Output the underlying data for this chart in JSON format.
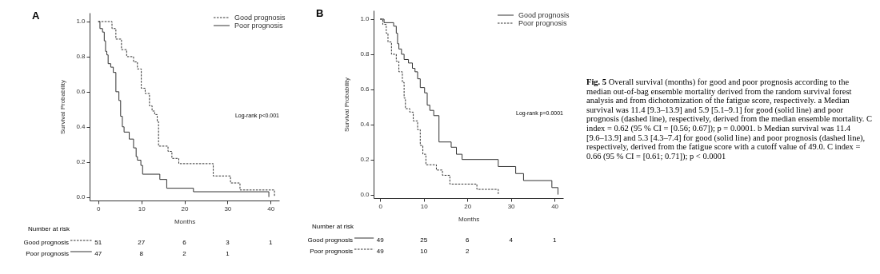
{
  "chart_data": [
    {
      "type": "step",
      "title": "A",
      "xlabel": "Months",
      "ylabel": "Survival Probability",
      "xlim": [
        -2,
        42
      ],
      "ylim": [
        -0.02,
        1.05
      ],
      "xticks": [
        0,
        10,
        20,
        30,
        40
      ],
      "yticks": [
        {
          "value": 0,
          "label": "0.0"
        },
        {
          "value": 0.2,
          "label": "0.2"
        },
        {
          "value": 0.4,
          "label": "0.4"
        },
        {
          "value": 0.6,
          "label": "0.6"
        },
        {
          "value": 0.8,
          "label": "0.8"
        },
        {
          "value": 1,
          "label": "1.0"
        }
      ],
      "legend": "top right",
      "grid": false,
      "series": [
        {
          "name": "Good prognosis",
          "color": "#333333",
          "line_style": "dashed",
          "x": [
            0,
            3.2,
            4.1,
            5.4,
            6.6,
            8.2,
            9.1,
            10.0,
            10.9,
            11.9,
            12.5,
            13.1,
            13.7,
            14.0,
            16.2,
            17.1,
            18.7,
            26.7,
            30.7,
            32.9,
            40.9
          ],
          "values": [
            1.0,
            0.96,
            0.9,
            0.84,
            0.8,
            0.77,
            0.73,
            0.62,
            0.59,
            0.52,
            0.49,
            0.47,
            0.43,
            0.29,
            0.26,
            0.22,
            0.19,
            0.12,
            0.08,
            0.04,
            0.0
          ]
        },
        {
          "name": "Poor prognosis",
          "color": "#333333",
          "line_style": "solid",
          "x": [
            0,
            0.4,
            1.0,
            1.4,
            1.7,
            2.0,
            2.3,
            2.9,
            3.5,
            4.1,
            4.8,
            5.2,
            5.6,
            6.0,
            7.2,
            8.2,
            8.8,
            9.1,
            9.9,
            10.3,
            14.3,
            15.9,
            22.1,
            39.6
          ],
          "values": [
            1.0,
            0.96,
            0.94,
            0.89,
            0.83,
            0.81,
            0.76,
            0.74,
            0.71,
            0.6,
            0.55,
            0.46,
            0.4,
            0.37,
            0.33,
            0.28,
            0.23,
            0.21,
            0.18,
            0.13,
            0.1,
            0.05,
            0.03,
            0.0
          ]
        }
      ],
      "annotations": [
        "Log-rank p<0.001",
        "Number at risk",
        "Good prognosis",
        "51",
        "27",
        "6",
        "3",
        "1",
        "Poor prognosis",
        "47",
        "8",
        "2",
        "1"
      ]
    },
    {
      "type": "step",
      "title": "B",
      "xlabel": "Months",
      "ylabel": "Survival Probability",
      "xlim": [
        -1.5,
        42
      ],
      "ylim": [
        -0.02,
        1.05
      ],
      "xticks": [
        0,
        10,
        20,
        30,
        40
      ],
      "yticks": [
        {
          "value": 0,
          "label": "0.0"
        },
        {
          "value": 0.2,
          "label": "0.2"
        },
        {
          "value": 0.4,
          "label": "0.4"
        },
        {
          "value": 0.6,
          "label": "0.6"
        },
        {
          "value": 0.8,
          "label": "0.8"
        },
        {
          "value": 1,
          "label": "1.0"
        }
      ],
      "legend": "top right",
      "grid": false,
      "series": [
        {
          "name": "Good prognosis",
          "color": "#333333",
          "line_style": "solid",
          "x": [
            0,
            0.9,
            3.1,
            3.7,
            4.0,
            4.3,
            4.9,
            5.5,
            6.5,
            7.4,
            8.0,
            8.6,
            9.2,
            10.2,
            10.8,
            11.4,
            12.3,
            13.5,
            16.3,
            17.5,
            18.8,
            27.1,
            31.1,
            32.9,
            39.4,
            40.8
          ],
          "values": [
            1.0,
            0.98,
            0.96,
            0.92,
            0.86,
            0.83,
            0.8,
            0.77,
            0.75,
            0.72,
            0.7,
            0.66,
            0.61,
            0.58,
            0.51,
            0.48,
            0.45,
            0.3,
            0.27,
            0.23,
            0.2,
            0.16,
            0.12,
            0.08,
            0.04,
            0.0
          ]
        },
        {
          "name": "Poor prognosis",
          "color": "#333333",
          "line_style": "dashed",
          "x": [
            0,
            0.6,
            1.4,
            1.8,
            2.6,
            3.7,
            4.3,
            5.1,
            5.5,
            5.8,
            6.8,
            7.6,
            8.6,
            9.2,
            9.8,
            10.5,
            12.9,
            14.3,
            16.0,
            22.2,
            27.1
          ],
          "values": [
            1.0,
            0.97,
            0.92,
            0.87,
            0.8,
            0.76,
            0.7,
            0.64,
            0.55,
            0.49,
            0.47,
            0.42,
            0.37,
            0.28,
            0.23,
            0.17,
            0.14,
            0.11,
            0.06,
            0.03,
            0.0
          ]
        }
      ],
      "annotations": [
        "Log-rank p=0.0001",
        "Number at risk",
        "Good prognosis",
        "49",
        "25",
        "6",
        "4",
        "1",
        "Poor prognosis",
        "49",
        "10",
        "2"
      ]
    },
    {
      "type": "other",
      "title": "Fig. 5",
      "annotations": [
        "Overall survival (months) for good and poor prognosis according to the median out-of-bag ensemble mortality derived from the random survival forest analysis and from dichotomization of the fatigue score, respectively. a Median survival was 11.4 [9.3–13.9] and 5.9 [5.1–9.1] for good (solid line) and poor prognosis (dashed line), respectively, derived from the median ensemble mortality. C index = 0.62 (95 % CI = [0.56; 0.67]); p = 0.0001. b Median survival was 11.4 [9.6–13.9] and 5.3 [4.3–7.4] for good (solid line) and poor prognosis (dashed line), respectively, derived from the fatigue score with a cutoff value of 49.0. C index = 0.66 (95 % CI = [0.61; 0.71]); p < 0.0001"
      ]
    }
  ]
}
